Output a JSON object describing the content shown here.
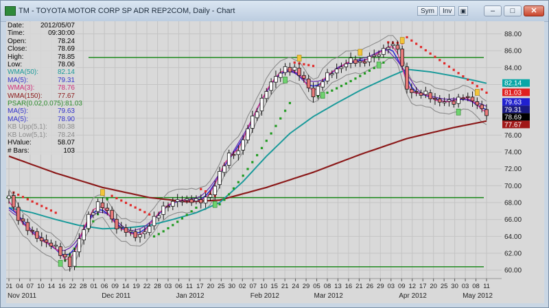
{
  "window": {
    "title": "TM - TOYOTA MOTOR CORP SP ADR REP2COM, Daily - Chart",
    "sym_label": "Sym",
    "inv_label": "Inv"
  },
  "info": [
    {
      "label": "Date:",
      "value": "2012/05/07",
      "color": "#000000"
    },
    {
      "label": "Time:",
      "value": "09:30:00",
      "color": "#000000"
    },
    {
      "label": "Open:",
      "value": "78.24",
      "color": "#000000"
    },
    {
      "label": "Close:",
      "value": "78.69",
      "color": "#000000"
    },
    {
      "label": "High:",
      "value": "78.85",
      "color": "#000000"
    },
    {
      "label": "Low:",
      "value": "78.06",
      "color": "#000000"
    },
    {
      "label": "WMA(50):",
      "value": "82.14",
      "color": "#1a9a9a"
    },
    {
      "label": "MA(5):",
      "value": "79.31",
      "color": "#3333cc"
    },
    {
      "label": "WMA(3):",
      "value": "78.76",
      "color": "#d0307a"
    },
    {
      "label": "WMA(150):",
      "value": "77.67",
      "color": "#8b1a1a"
    },
    {
      "label": "PSAR(0.02,0.075):",
      "value": "81.03",
      "color": "#2a8a2a"
    },
    {
      "label": "MA(5):",
      "value": "79.63",
      "color": "#3333cc"
    },
    {
      "label": "MA(5):",
      "value": "78.90",
      "color": "#3333cc"
    },
    {
      "label": "KB Upp(5,1):",
      "value": "80.38",
      "color": "#8c8c8c"
    },
    {
      "label": "KB Low(5,1):",
      "value": "78.24",
      "color": "#8c8c8c"
    },
    {
      "label": "HValue:",
      "value": "58.07",
      "color": "#000000"
    },
    {
      "label": "# Bars:",
      "value": "103",
      "color": "#000000"
    }
  ],
  "chart_data": {
    "type": "candlestick",
    "ylim": [
      59,
      89.5
    ],
    "yticks": [
      "60.00",
      "62.00",
      "64.00",
      "66.00",
      "68.00",
      "70.00",
      "72.00",
      "74.00",
      "76.00",
      "78.00",
      "80.00",
      "82.00",
      "84.00",
      "86.00",
      "88.00"
    ],
    "grid": true,
    "day_labels": [
      "01",
      "04",
      "07",
      "10",
      "14",
      "16",
      "22",
      "28",
      "01",
      "06",
      "09",
      "14",
      "19",
      "22",
      "28",
      "03",
      "06",
      "11",
      "17",
      "20",
      "25",
      "30",
      "02",
      "07",
      "10",
      "15",
      "21",
      "24",
      "29",
      "05",
      "08",
      "13",
      "16",
      "21",
      "26",
      "29",
      "03",
      "09",
      "12",
      "17",
      "20",
      "25",
      "30",
      "03",
      "08",
      "11"
    ],
    "month_labels": [
      {
        "text": "Nov 2011",
        "at_day": 0
      },
      {
        "text": "Dec 2011",
        "at_day": 9
      },
      {
        "text": "Jan 2012",
        "at_day": 16
      },
      {
        "text": "Feb 2012",
        "at_day": 23
      },
      {
        "text": "Mar 2012",
        "at_day": 29
      },
      {
        "text": "Apr 2012",
        "at_day": 37
      },
      {
        "text": "May 2012",
        "at_day": 43
      }
    ],
    "horizontal_lines": [
      85.2,
      68.6,
      60.4
    ],
    "last_values": [
      {
        "label": "82.14",
        "value": 82.14,
        "color": "#0aa7a7",
        "text_color": "#ffffff"
      },
      {
        "label": "81.03",
        "value": 81.03,
        "color": "#e02020",
        "text_color": "#ffffff"
      },
      {
        "label": "79.63",
        "value": 79.9,
        "color": "#2020d0",
        "text_color": "#ffffff"
      },
      {
        "label": "79.31",
        "value": 79.4,
        "color": "#1a1a80",
        "text_color": "#ffffff"
      },
      {
        "label": "78.69",
        "value": 78.69,
        "color": "#000000",
        "text_color": "#ffffff"
      },
      {
        "label": "77.67",
        "value": 77.67,
        "color": "#a01818",
        "text_color": "#ffffff"
      }
    ],
    "close_keypoints": [
      [
        0,
        68.8
      ],
      [
        2,
        66.2
      ],
      [
        4,
        64.8
      ],
      [
        6,
        64.0
      ],
      [
        8,
        63.2
      ],
      [
        10,
        62.6
      ],
      [
        12,
        61.5
      ],
      [
        13,
        60.6
      ],
      [
        15,
        63.5
      ],
      [
        17,
        66.5
      ],
      [
        19,
        67.8
      ],
      [
        21,
        67.0
      ],
      [
        23,
        65.2
      ],
      [
        25,
        64.6
      ],
      [
        27,
        64.1
      ],
      [
        29,
        64.5
      ],
      [
        31,
        66.0
      ],
      [
        33,
        67.5
      ],
      [
        35,
        68.0
      ],
      [
        37,
        68.3
      ],
      [
        39,
        68.4
      ],
      [
        41,
        68.0
      ],
      [
        43,
        69.0
      ],
      [
        45,
        71.5
      ],
      [
        47,
        73.5
      ],
      [
        49,
        74.2
      ],
      [
        51,
        76.8
      ],
      [
        53,
        79.0
      ],
      [
        55,
        81.5
      ],
      [
        57,
        82.8
      ],
      [
        59,
        84.0
      ],
      [
        61,
        83.8
      ],
      [
        63,
        82.5
      ],
      [
        65,
        80.8
      ],
      [
        67,
        82.5
      ],
      [
        69,
        83.5
      ],
      [
        71,
        84.2
      ],
      [
        73,
        84.8
      ],
      [
        75,
        84.6
      ],
      [
        77,
        85.2
      ],
      [
        79,
        85.5
      ],
      [
        81,
        86.8
      ],
      [
        83,
        86.3
      ],
      [
        85,
        81.5
      ],
      [
        87,
        81.0
      ],
      [
        89,
        80.8
      ],
      [
        91,
        80.2
      ],
      [
        93,
        80.0
      ],
      [
        95,
        79.8
      ],
      [
        97,
        80.8
      ],
      [
        99,
        80.0
      ],
      [
        101,
        79.0
      ],
      [
        102,
        78.69
      ]
    ],
    "wma50_keypoints": [
      [
        0,
        67.4
      ],
      [
        5,
        66.8
      ],
      [
        10,
        66.0
      ],
      [
        15,
        65.3
      ],
      [
        20,
        64.9
      ],
      [
        25,
        65.0
      ],
      [
        30,
        65.3
      ],
      [
        35,
        66.0
      ],
      [
        40,
        66.8
      ],
      [
        45,
        68.0
      ],
      [
        50,
        70.5
      ],
      [
        55,
        73.5
      ],
      [
        60,
        76.2
      ],
      [
        65,
        78.2
      ],
      [
        70,
        79.8
      ],
      [
        75,
        81.3
      ],
      [
        80,
        82.6
      ],
      [
        85,
        83.8
      ],
      [
        90,
        83.5
      ],
      [
        95,
        83.0
      ],
      [
        100,
        82.4
      ],
      [
        102,
        82.14
      ]
    ],
    "wma150_keypoints": [
      [
        0,
        73.5
      ],
      [
        10,
        71.5
      ],
      [
        20,
        69.8
      ],
      [
        30,
        68.6
      ],
      [
        38,
        68.1
      ],
      [
        45,
        68.3
      ],
      [
        55,
        69.8
      ],
      [
        65,
        71.6
      ],
      [
        75,
        73.7
      ],
      [
        85,
        75.6
      ],
      [
        95,
        76.9
      ],
      [
        102,
        77.67
      ]
    ],
    "psar_segments": [
      {
        "from": 1,
        "to": 10,
        "start": 69.2,
        "end": 66.8,
        "side": "above"
      },
      {
        "from": 11,
        "to": 21,
        "start": 60.6,
        "end": 68.4,
        "side": "below"
      },
      {
        "from": 22,
        "to": 30,
        "start": 68.8,
        "end": 66.6,
        "side": "above"
      },
      {
        "from": 31,
        "to": 40,
        "start": 64.0,
        "end": 67.4,
        "side": "below"
      },
      {
        "from": 41,
        "to": 44,
        "start": 69.6,
        "end": 68.8,
        "side": "above"
      },
      {
        "from": 45,
        "to": 60,
        "start": 67.8,
        "end": 79.8,
        "side": "below"
      },
      {
        "from": 61,
        "to": 65,
        "start": 84.6,
        "end": 84.2,
        "side": "above"
      },
      {
        "from": 66,
        "to": 80,
        "start": 80.6,
        "end": 84.6,
        "side": "below"
      },
      {
        "from": 81,
        "to": 84,
        "start": 87.0,
        "end": 86.9,
        "side": "above"
      },
      {
        "from": 85,
        "to": 102,
        "start": 87.6,
        "end": 81.03,
        "side": "above"
      }
    ],
    "buy_markers": [
      11,
      44,
      59,
      67,
      79,
      96
    ],
    "sell_markers": [
      20,
      62,
      75,
      84,
      100
    ]
  }
}
